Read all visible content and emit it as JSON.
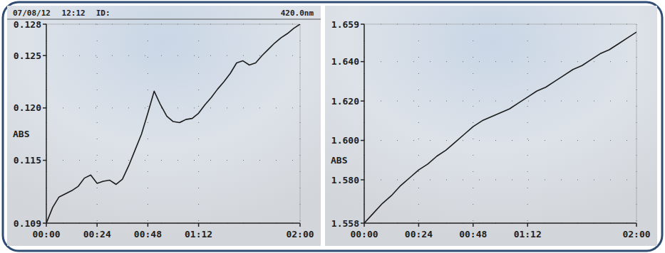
{
  "chart_data": [
    {
      "type": "line",
      "annotations": [
        "07/08/12",
        "12:12",
        "ID:",
        "420.0nm"
      ],
      "y_label": "ABS",
      "x": [
        0,
        3,
        6,
        9,
        12,
        15,
        18,
        21,
        24,
        27,
        30,
        33,
        36,
        39,
        42,
        45,
        48,
        51,
        54,
        57,
        60,
        63,
        66,
        69,
        72,
        75,
        78,
        81,
        84,
        87,
        90,
        93,
        96,
        99,
        102,
        105,
        108,
        111,
        114,
        117,
        120
      ],
      "series": [
        {
          "color": "#1c1c1c",
          "values": [
            0.109,
            0.1105,
            0.1115,
            0.1118,
            0.1121,
            0.1125,
            0.1133,
            0.1136,
            0.1128,
            0.113,
            0.1131,
            0.1127,
            0.1132,
            0.1145,
            0.116,
            0.1175,
            0.1195,
            0.1216,
            0.1203,
            0.1192,
            0.1187,
            0.1186,
            0.1189,
            0.119,
            0.1195,
            0.1203,
            0.121,
            0.1218,
            0.1225,
            0.1233,
            0.1243,
            0.1245,
            0.1241,
            0.1243,
            0.125,
            0.1256,
            0.1262,
            0.1267,
            0.1271,
            0.1276,
            0.128
          ]
        }
      ],
      "xlim": [
        0,
        120
      ],
      "xticks": [
        {
          "value": 0,
          "label": "00:00"
        },
        {
          "value": 24,
          "label": "00:24"
        },
        {
          "value": 48,
          "label": "00:48"
        },
        {
          "value": 72,
          "label": "01:12"
        },
        {
          "value": 120,
          "label": "02:00"
        }
      ],
      "ylim": [
        0.109,
        0.128
      ],
      "yticks": [
        {
          "value": 0.109,
          "label": "0.109"
        },
        {
          "value": 0.115,
          "label": "0.115"
        },
        {
          "value": 0.12,
          "label": "0.120"
        },
        {
          "value": 0.125,
          "label": "0.125"
        },
        {
          "value": 0.128,
          "label": "0.128"
        }
      ],
      "grid": true
    },
    {
      "type": "line",
      "y_label": "ABS",
      "x": [
        0,
        4,
        8,
        12,
        16,
        20,
        24,
        28,
        32,
        36,
        40,
        44,
        48,
        52,
        56,
        60,
        64,
        68,
        72,
        76,
        80,
        84,
        88,
        92,
        96,
        100,
        104,
        108,
        112,
        116,
        120
      ],
      "series": [
        {
          "color": "#1c1c1c",
          "values": [
            1.558,
            1.563,
            1.568,
            1.572,
            1.577,
            1.581,
            1.585,
            1.588,
            1.592,
            1.595,
            1.599,
            1.603,
            1.607,
            1.61,
            1.612,
            1.614,
            1.616,
            1.619,
            1.622,
            1.625,
            1.627,
            1.63,
            1.633,
            1.636,
            1.638,
            1.641,
            1.644,
            1.646,
            1.649,
            1.652,
            1.655
          ]
        }
      ],
      "xlim": [
        0,
        120
      ],
      "xticks": [
        {
          "value": 0,
          "label": "00:00"
        },
        {
          "value": 24,
          "label": "00:24"
        },
        {
          "value": 48,
          "label": "00:48"
        },
        {
          "value": 72,
          "label": "01:12"
        },
        {
          "value": 120,
          "label": "02:00"
        }
      ],
      "ylim": [
        1.558,
        1.659
      ],
      "yticks": [
        {
          "value": 1.558,
          "label": "1.558"
        },
        {
          "value": 1.58,
          "label": "1.580"
        },
        {
          "value": 1.6,
          "label": "1.600"
        },
        {
          "value": 1.62,
          "label": "1.620"
        },
        {
          "value": 1.64,
          "label": "1.640"
        },
        {
          "value": 1.659,
          "label": "1.659"
        }
      ],
      "grid": true
    }
  ]
}
